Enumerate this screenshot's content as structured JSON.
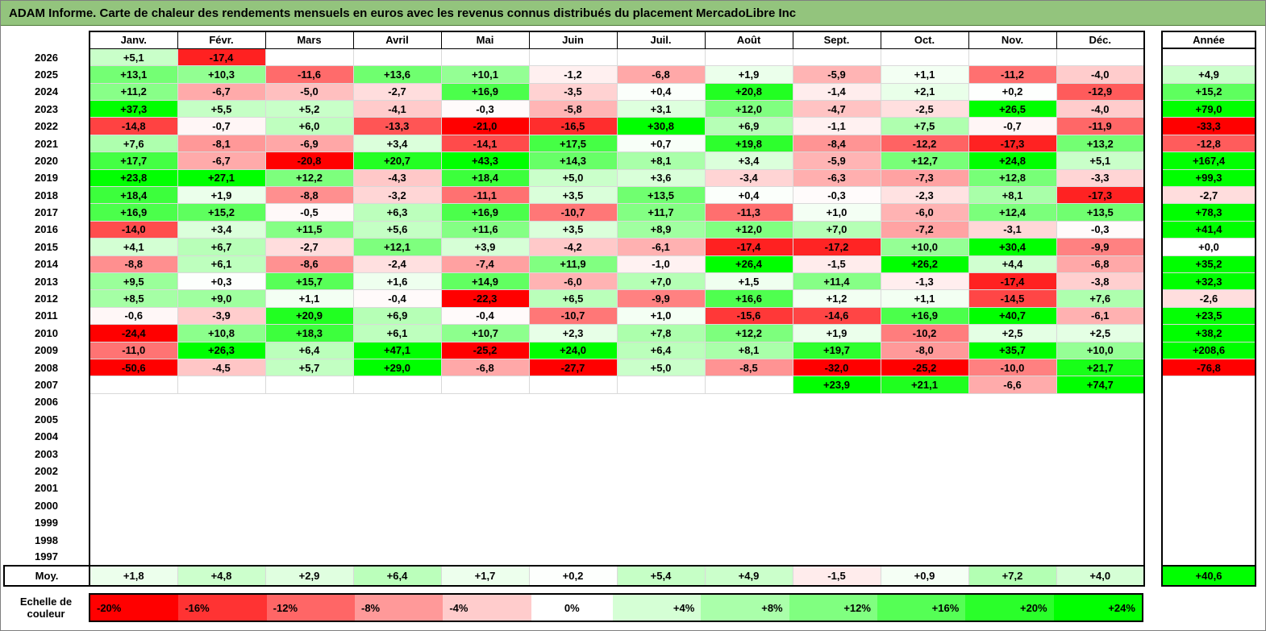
{
  "title": "ADAM Informe. Carte de chaleur des rendements mensuels en euros avec les revenus connus distribués du placement MercadoLibre Inc",
  "colors": {
    "title_bg": "#93c47d",
    "title_text": "#000000",
    "grid_hairline": "#d9d9d9",
    "table_border": "#000000",
    "page_bg": "#ffffff"
  },
  "chart_data": {
    "type": "heatmap",
    "title": "ADAM Informe. Carte de chaleur des rendements mensuels en euros avec les revenus connus distribués du placement MercadoLibre Inc",
    "columns": [
      "Janv.",
      "Févr.",
      "Mars",
      "Avril",
      "Mai",
      "Juin",
      "Juil.",
      "Août",
      "Sept.",
      "Oct.",
      "Nov.",
      "Déc."
    ],
    "annee_label": "Année",
    "color_map": {
      "negative_color": "#ff0000",
      "zero_color": "#ffffff",
      "positive_color": "#00ff00",
      "negative_saturates_at": -20,
      "positive_saturates_at": 24
    },
    "rows": [
      {
        "year": "2026",
        "empty": false,
        "values": [
          "+5,1",
          "-17,4",
          "",
          "",
          "",
          "",
          "",
          "",
          "",
          "",
          "",
          ""
        ],
        "annee": ""
      },
      {
        "year": "2025",
        "empty": false,
        "values": [
          "+13,1",
          "+10,3",
          "-11,6",
          "+13,6",
          "+10,1",
          "-1,2",
          "-6,8",
          "+1,9",
          "-5,9",
          "+1,1",
          "-11,2",
          "-4,0"
        ],
        "annee": "+4,9"
      },
      {
        "year": "2024",
        "empty": false,
        "values": [
          "+11,2",
          "-6,7",
          "-5,0",
          "-2,7",
          "+16,9",
          "-3,5",
          "+0,4",
          "+20,8",
          "-1,4",
          "+2,1",
          "+0,2",
          "-12,9"
        ],
        "annee": "+15,2"
      },
      {
        "year": "2023",
        "empty": false,
        "values": [
          "+37,3",
          "+5,5",
          "+5,2",
          "-4,1",
          "-0,3",
          "-5,8",
          "+3,1",
          "+12,0",
          "-4,7",
          "-2,5",
          "+26,5",
          "-4,0"
        ],
        "annee": "+79,0"
      },
      {
        "year": "2022",
        "empty": false,
        "values": [
          "-14,8",
          "-0,7",
          "+6,0",
          "-13,3",
          "-21,0",
          "-16,5",
          "+30,8",
          "+6,9",
          "-1,1",
          "+7,5",
          "-0,7",
          "-11,9"
        ],
        "annee": "-33,3"
      },
      {
        "year": "2021",
        "empty": false,
        "values": [
          "+7,6",
          "-8,1",
          "-6,9",
          "+3,4",
          "-14,1",
          "+17,5",
          "+0,7",
          "+19,8",
          "-8,4",
          "-12,2",
          "-17,3",
          "+13,2"
        ],
        "annee": "-12,8"
      },
      {
        "year": "2020",
        "empty": false,
        "values": [
          "+17,7",
          "-6,7",
          "-20,8",
          "+20,7",
          "+43,3",
          "+14,3",
          "+8,1",
          "+3,4",
          "-5,9",
          "+12,7",
          "+24,8",
          "+5,1"
        ],
        "annee": "+167,4"
      },
      {
        "year": "2019",
        "empty": false,
        "values": [
          "+23,8",
          "+27,1",
          "+12,2",
          "-4,3",
          "+18,4",
          "+5,0",
          "+3,6",
          "-3,4",
          "-6,3",
          "-7,3",
          "+12,8",
          "-3,3"
        ],
        "annee": "+99,3"
      },
      {
        "year": "2018",
        "empty": false,
        "values": [
          "+18,4",
          "+1,9",
          "-8,8",
          "-3,2",
          "-11,1",
          "+3,5",
          "+13,5",
          "+0,4",
          "-0,3",
          "-2,3",
          "+8,1",
          "-17,3"
        ],
        "annee": "-2,7"
      },
      {
        "year": "2017",
        "empty": false,
        "values": [
          "+16,9",
          "+15,2",
          "-0,5",
          "+6,3",
          "+16,9",
          "-10,7",
          "+11,7",
          "-11,3",
          "+1,0",
          "-6,0",
          "+12,4",
          "+13,5"
        ],
        "annee": "+78,3"
      },
      {
        "year": "2016",
        "empty": false,
        "values": [
          "-14,0",
          "+3,4",
          "+11,5",
          "+5,6",
          "+11,6",
          "+3,5",
          "+8,9",
          "+12,0",
          "+7,0",
          "-7,2",
          "-3,1",
          "-0,3"
        ],
        "annee": "+41,4"
      },
      {
        "year": "2015",
        "empty": false,
        "values": [
          "+4,1",
          "+6,7",
          "-2,7",
          "+12,1",
          "+3,9",
          "-4,2",
          "-6,1",
          "-17,4",
          "-17,2",
          "+10,0",
          "+30,4",
          "-9,9"
        ],
        "annee": "+0,0"
      },
      {
        "year": "2014",
        "empty": false,
        "values": [
          "-8,8",
          "+6,1",
          "-8,6",
          "-2,4",
          "-7,4",
          "+11,9",
          "-1,0",
          "+26,4",
          "-1,5",
          "+26,2",
          "+4,4",
          "-6,8"
        ],
        "annee": "+35,2"
      },
      {
        "year": "2013",
        "empty": false,
        "values": [
          "+9,5",
          "+0,3",
          "+15,7",
          "+1,6",
          "+14,9",
          "-6,0",
          "+7,0",
          "+1,5",
          "+11,4",
          "-1,3",
          "-17,4",
          "-3,8"
        ],
        "annee": "+32,3"
      },
      {
        "year": "2012",
        "empty": false,
        "values": [
          "+8,5",
          "+9,0",
          "+1,1",
          "-0,4",
          "-22,3",
          "+6,5",
          "-9,9",
          "+16,6",
          "+1,2",
          "+1,1",
          "-14,5",
          "+7,6"
        ],
        "annee": "-2,6"
      },
      {
        "year": "2011",
        "empty": false,
        "values": [
          "-0,6",
          "-3,9",
          "+20,9",
          "+6,9",
          "-0,4",
          "-10,7",
          "+1,0",
          "-15,6",
          "-14,6",
          "+16,9",
          "+40,7",
          "-6,1"
        ],
        "annee": "+23,5"
      },
      {
        "year": "2010",
        "empty": false,
        "values": [
          "-24,4",
          "+10,8",
          "+18,3",
          "+6,1",
          "+10,7",
          "+2,3",
          "+7,8",
          "+12,2",
          "+1,9",
          "-10,2",
          "+2,5",
          "+2,5"
        ],
        "annee": "+38,2"
      },
      {
        "year": "2009",
        "empty": false,
        "values": [
          "-11,0",
          "+26,3",
          "+6,4",
          "+47,1",
          "-25,2",
          "+24,0",
          "+6,4",
          "+8,1",
          "+19,7",
          "-8,0",
          "+35,7",
          "+10,0"
        ],
        "annee": "+208,6"
      },
      {
        "year": "2008",
        "empty": false,
        "values": [
          "-50,6",
          "-4,5",
          "+5,7",
          "+29,0",
          "-6,8",
          "-27,7",
          "+5,0",
          "-8,5",
          "-32,0",
          "-25,2",
          "-10,0",
          "+21,7"
        ],
        "annee": "-76,8"
      },
      {
        "year": "2007",
        "empty": false,
        "values": [
          "",
          "",
          "",
          "",
          "",
          "",
          "",
          "",
          "+23,9",
          "+21,1",
          "-6,6",
          "+74,7"
        ],
        "annee": ""
      },
      {
        "year": "2006",
        "empty": true,
        "values": [],
        "annee": ""
      },
      {
        "year": "2005",
        "empty": true,
        "values": [],
        "annee": ""
      },
      {
        "year": "2004",
        "empty": true,
        "values": [],
        "annee": ""
      },
      {
        "year": "2003",
        "empty": true,
        "values": [],
        "annee": ""
      },
      {
        "year": "2002",
        "empty": true,
        "values": [],
        "annee": ""
      },
      {
        "year": "2001",
        "empty": true,
        "values": [],
        "annee": ""
      },
      {
        "year": "2000",
        "empty": true,
        "values": [],
        "annee": ""
      },
      {
        "year": "1999",
        "empty": true,
        "values": [],
        "annee": ""
      },
      {
        "year": "1998",
        "empty": true,
        "values": [],
        "annee": ""
      },
      {
        "year": "1997",
        "empty": true,
        "values": [],
        "annee": ""
      }
    ],
    "moy": {
      "label": "Moy.",
      "values": [
        "+1,8",
        "+4,8",
        "+2,9",
        "+6,4",
        "+1,7",
        "+0,2",
        "+5,4",
        "+4,9",
        "-1,5",
        "+0,9",
        "+7,2",
        "+4,0"
      ],
      "annee": "+40,6"
    },
    "scale": {
      "label": "Echelle de couleur",
      "stops": [
        {
          "label": "-20%",
          "value": -20
        },
        {
          "label": "-16%",
          "value": -16
        },
        {
          "label": "-12%",
          "value": -12
        },
        {
          "label": "-8%",
          "value": -8
        },
        {
          "label": "-4%",
          "value": -4
        },
        {
          "label": "0%",
          "value": 0
        },
        {
          "label": "+4%",
          "value": 4
        },
        {
          "label": "+8%",
          "value": 8
        },
        {
          "label": "+12%",
          "value": 12
        },
        {
          "label": "+16%",
          "value": 16
        },
        {
          "label": "+20%",
          "value": 20
        },
        {
          "label": "+24%",
          "value": 24
        }
      ]
    }
  }
}
